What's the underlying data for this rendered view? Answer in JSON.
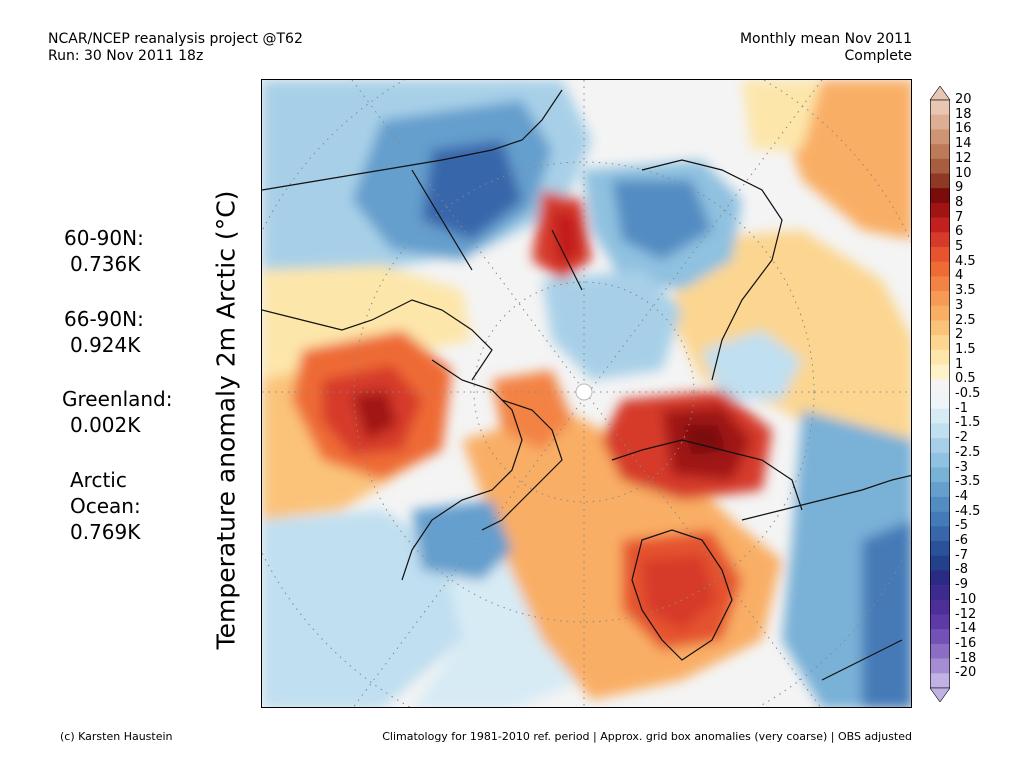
{
  "header": {
    "left_line1": "NCAR/NCEP reanalysis project @T62",
    "left_line2": "Run: 30 Nov 2011 18z",
    "right_line1": "Monthly mean Nov 2011",
    "right_line2": "Complete"
  },
  "axis_label": "Temperature anomaly 2m Arctic (°C)",
  "stats": [
    {
      "region": "60-90N:",
      "value": "0.736K"
    },
    {
      "region": "66-90N:",
      "value": "0.924K"
    },
    {
      "region": "Greenland:",
      "value": "0.002K"
    },
    {
      "region_line1": "Arctic",
      "region_line2": "Ocean:",
      "value": "0.769K"
    }
  ],
  "colorbar": {
    "labels": [
      "20",
      "18",
      "16",
      "14",
      "12",
      "10",
      "9",
      "8",
      "7",
      "6",
      "5",
      "4.5",
      "4",
      "3.5",
      "3",
      "2.5",
      "2",
      "1.5",
      "1",
      "0.5",
      "-0.5",
      "-1",
      "-1.5",
      "-2",
      "-2.5",
      "-3",
      "-3.5",
      "-4",
      "-4.5",
      "-5",
      "-6",
      "-7",
      "-8",
      "-9",
      "-10",
      "-12",
      "-14",
      "-16",
      "-18",
      "-20"
    ],
    "colors": [
      "#e9c6b1",
      "#ddae93",
      "#cf9474",
      "#bd7a58",
      "#a85e3e",
      "#8f3826",
      "#7a0c0c",
      "#a11414",
      "#c21f1f",
      "#d63a2a",
      "#e5532f",
      "#ee6b35",
      "#f38345",
      "#f79a55",
      "#f9ae65",
      "#fbc37a",
      "#fcd690",
      "#fde6aa",
      "#fdf2c9",
      "#f4f4f4",
      "#eef5f9",
      "#d7ebf5",
      "#c0dff0",
      "#a7d0e8",
      "#8fc1e0",
      "#79b1d7",
      "#659fcd",
      "#538cc2",
      "#447ab7",
      "#3766aa",
      "#2b519b",
      "#24408b",
      "#2b2b86",
      "#3c2a8e",
      "#4c2f98",
      "#5e3aa6",
      "#7352b5",
      "#8b6ec4",
      "#a48dd3",
      "#c1b1e4"
    ]
  },
  "footer": {
    "left": "(c) Karsten Haustein",
    "right": "Climatology for 1981-2010 ref. period | Approx. grid box anomalies (very coarse) | OBS adjusted"
  }
}
